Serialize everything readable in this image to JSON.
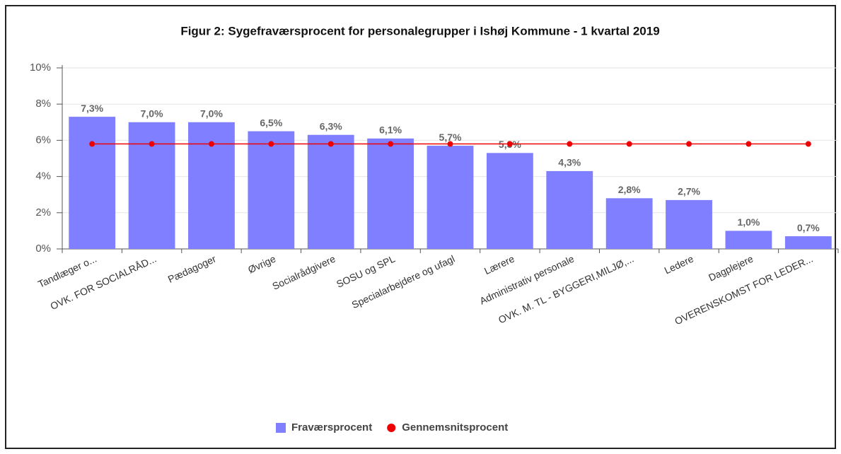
{
  "chart_data": {
    "type": "bar",
    "title": "Figur 2: Sygefraværsprocent for personalegrupper i Ishøj Kommune - 1 kvartal 2019",
    "categories": [
      "Tandlæger o...",
      "OVK. FOR SOCIALRÅD...",
      "Pædagoger",
      "Øvrige",
      "Socialrådgivere",
      "SOSU og SPL",
      "Specialarbejdere og ufagl",
      "Lærere",
      "Administrativ personale",
      "OVK. M. TL - BYGGERI,MILJØ,...",
      "Ledere",
      "Dagplejere",
      "OVERENSKOMST FOR LEDER..."
    ],
    "series": [
      {
        "name": "Fraværsprocent",
        "color": "#7f7fff",
        "type": "bar",
        "values": [
          7.3,
          7.0,
          7.0,
          6.5,
          6.3,
          6.1,
          5.7,
          5.3,
          4.3,
          2.8,
          2.7,
          1.0,
          0.7
        ],
        "value_labels": [
          "7,3%",
          "7,0%",
          "7,0%",
          "6,5%",
          "6,3%",
          "6,1%",
          "5,7%",
          "5,3%",
          "4,3%",
          "2,8%",
          "2,7%",
          "1,0%",
          "0,7%"
        ]
      },
      {
        "name": "Gennemsnitsprocent",
        "color": "#ee0000",
        "type": "line",
        "values": [
          5.8,
          5.8,
          5.8,
          5.8,
          5.8,
          5.8,
          5.8,
          5.8,
          5.8,
          5.8,
          5.8,
          5.8,
          5.8
        ]
      }
    ],
    "ylim": [
      0,
      10
    ],
    "yticks": [
      {
        "value": 0,
        "label": "0%"
      },
      {
        "value": 2,
        "label": "2%"
      },
      {
        "value": 4,
        "label": "4%"
      },
      {
        "value": 6,
        "label": "6%"
      },
      {
        "value": 8,
        "label": "8%"
      },
      {
        "value": 10,
        "label": "10%"
      }
    ],
    "grid": true
  }
}
